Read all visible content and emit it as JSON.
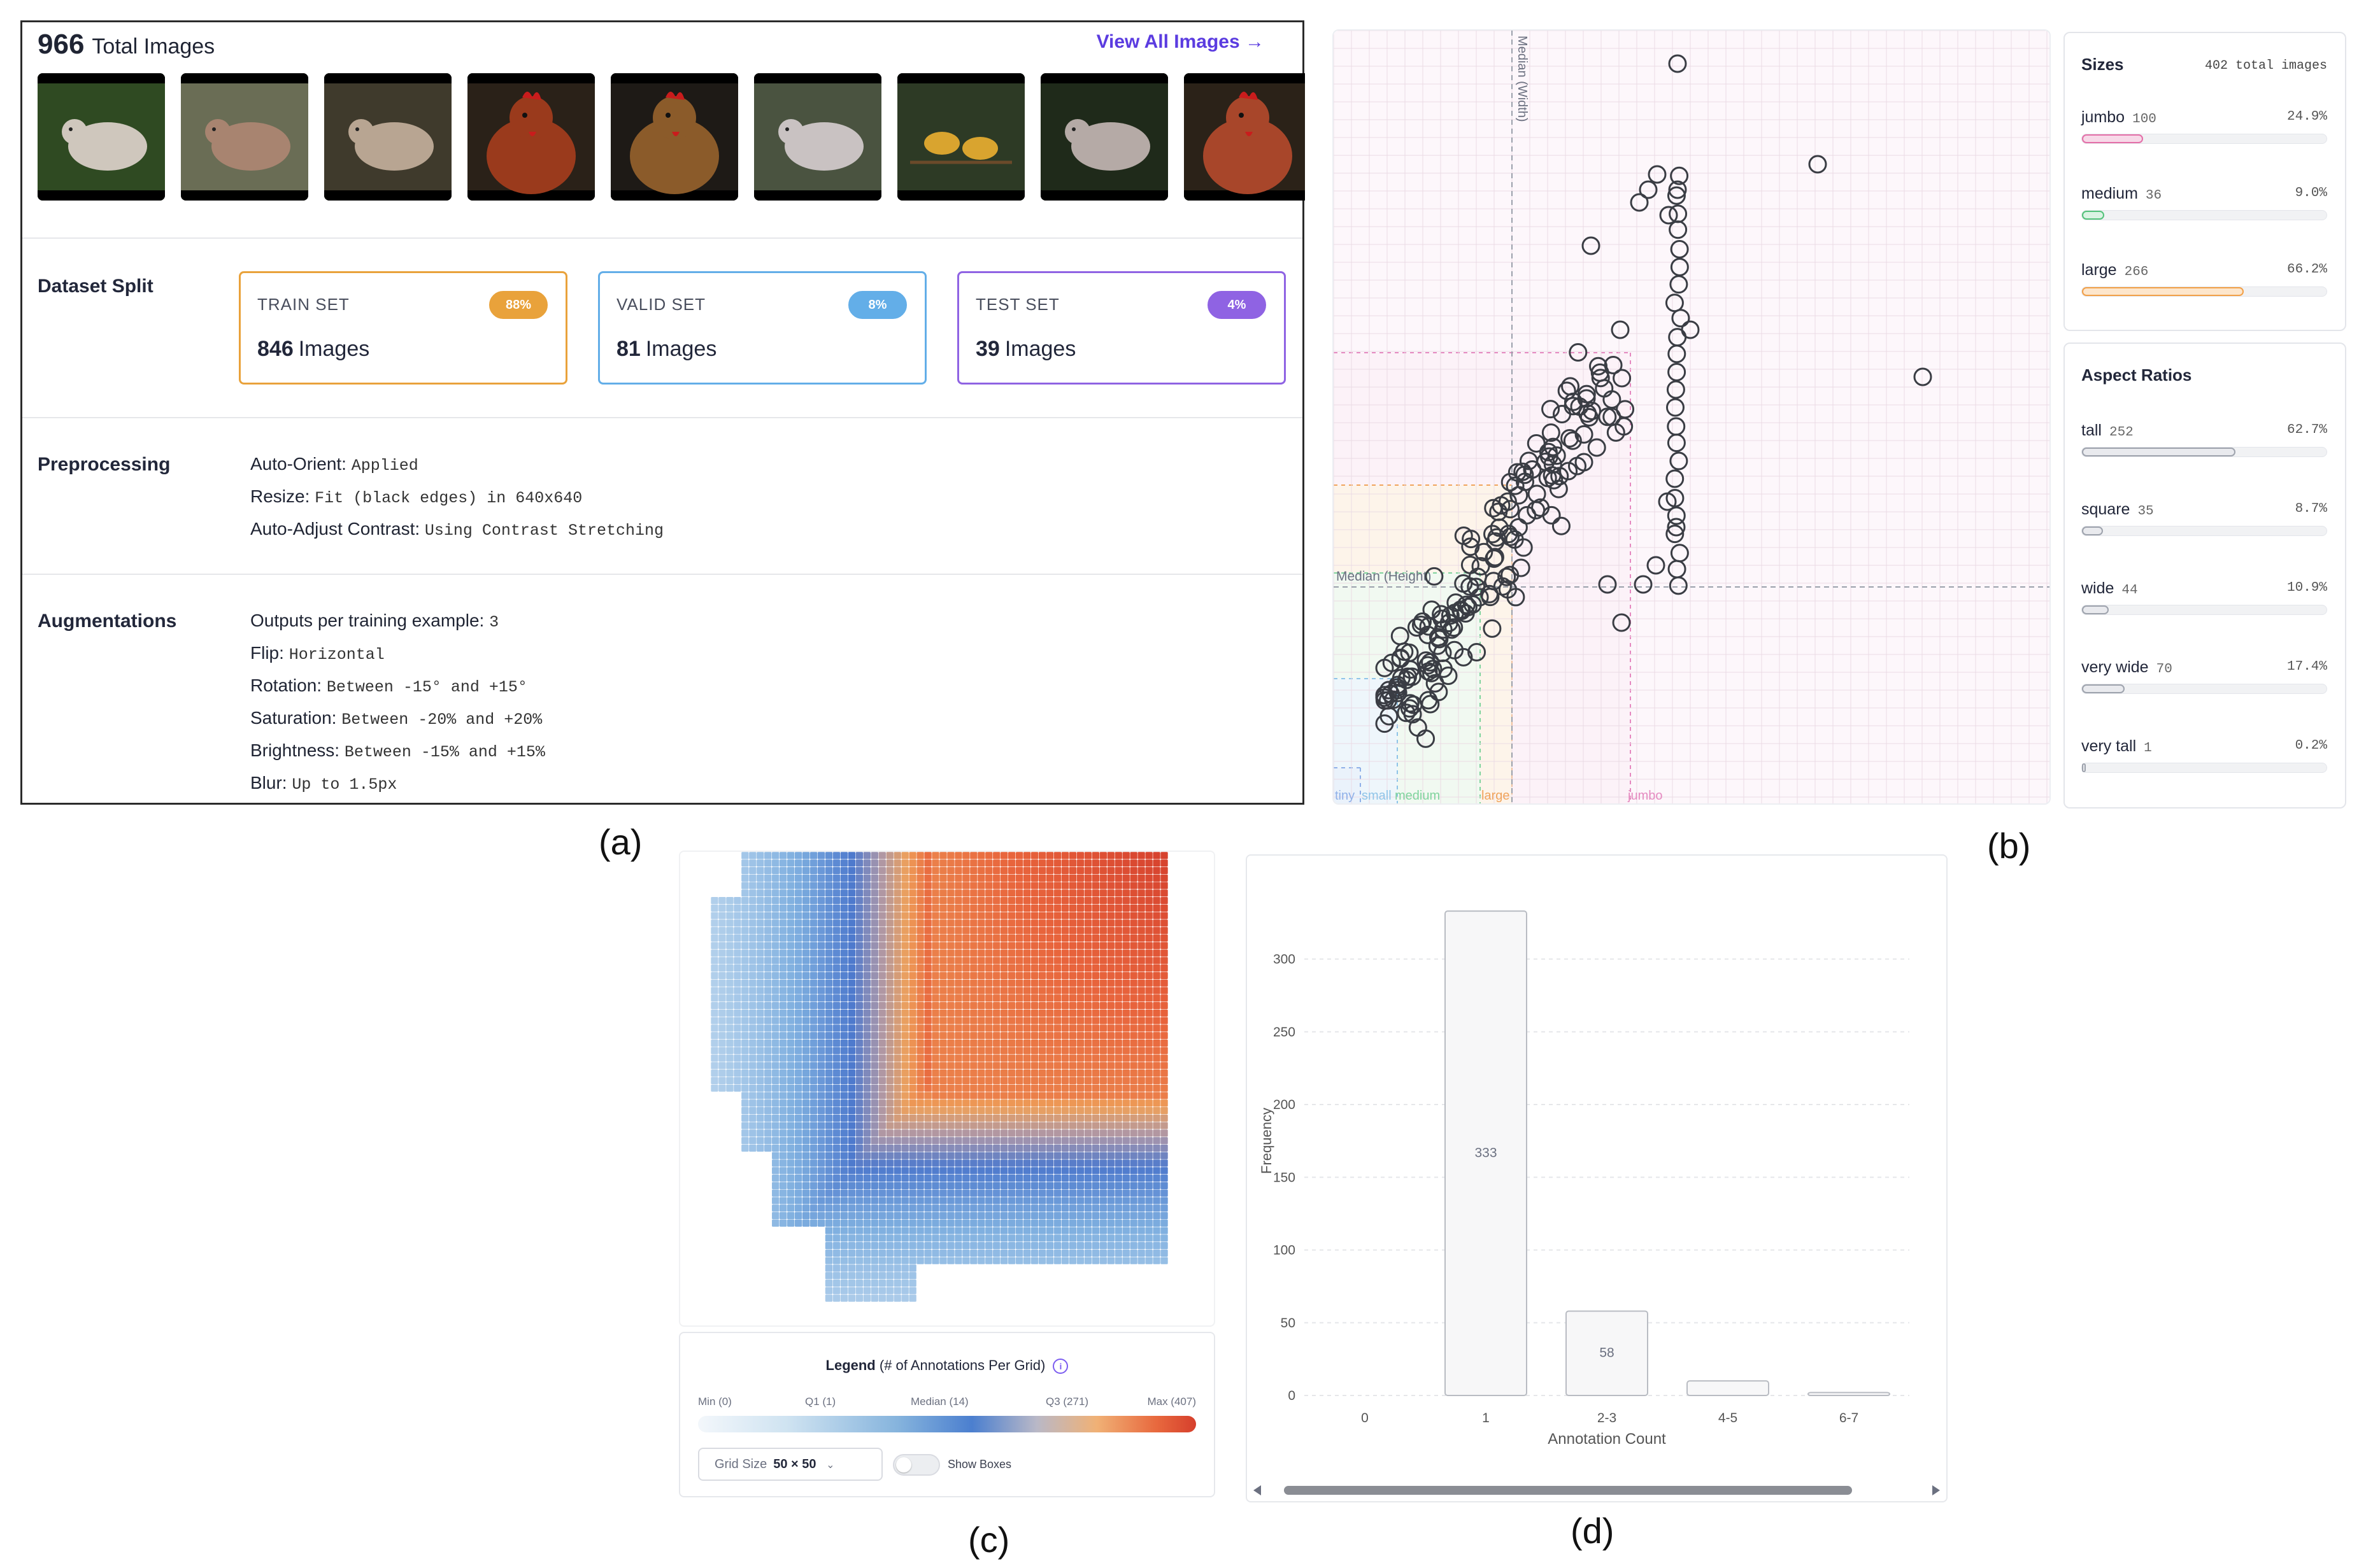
{
  "panel_a": {
    "total_count": "966",
    "total_label": "Total Images",
    "view_all": "View All Images →",
    "thumbnails": [
      {
        "subject": "dove",
        "bg": "#2f4a22",
        "body": "#cfc7bd"
      },
      {
        "subject": "dove",
        "bg": "#6a6d55",
        "body": "#a88470"
      },
      {
        "subject": "dove",
        "bg": "#3f3a2c",
        "body": "#b8a592"
      },
      {
        "subject": "chicken",
        "bg": "#2a2118",
        "body": "#9a3a1c"
      },
      {
        "subject": "chicken",
        "bg": "#1e1a16",
        "body": "#8b5b2a"
      },
      {
        "subject": "dove",
        "bg": "#4a5340",
        "body": "#c9c2c2"
      },
      {
        "subject": "finches",
        "bg": "#2d3a25",
        "body": "#d9a42f"
      },
      {
        "subject": "dove",
        "bg": "#1f2a1a",
        "body": "#b5aaa6"
      },
      {
        "subject": "chicken",
        "bg": "#2b2218",
        "body": "#a8462a"
      }
    ],
    "dataset_split": {
      "label": "Dataset Split",
      "sets": [
        {
          "title": "TRAIN SET",
          "count": "846",
          "unit": "Images",
          "badge": "88%",
          "color": "#e9a23b"
        },
        {
          "title": "VALID SET",
          "count": "81",
          "unit": "Images",
          "badge": "8%",
          "color": "#63aee8"
        },
        {
          "title": "TEST SET",
          "count": "39",
          "unit": "Images",
          "badge": "4%",
          "color": "#8f63e3"
        }
      ]
    },
    "preprocessing": {
      "label": "Preprocessing",
      "items": [
        {
          "k": "Auto-Orient:",
          "v": "Applied"
        },
        {
          "k": "Resize:",
          "v": "Fit (black edges) in 640x640"
        },
        {
          "k": "Auto-Adjust Contrast:",
          "v": "Using Contrast Stretching"
        }
      ]
    },
    "augmentations": {
      "label": "Augmentations",
      "items": [
        {
          "k": "Outputs per training example:",
          "v": "3"
        },
        {
          "k": "Flip:",
          "v": "Horizontal"
        },
        {
          "k": "Rotation:",
          "v": "Between -15° and +15°"
        },
        {
          "k": "Saturation:",
          "v": "Between -20% and +20%"
        },
        {
          "k": "Brightness:",
          "v": "Between -15% and +15%"
        },
        {
          "k": "Blur:",
          "v": "Up to 1.5px"
        }
      ]
    }
  },
  "panel_b": {
    "median_width_label": "Median (Width)",
    "median_height_label": "Median (Height)",
    "zone_labels": [
      "tiny",
      "small",
      "medium",
      "large",
      "jumbo"
    ],
    "sizes": {
      "title": "Sizes",
      "total": "402 total images",
      "rows": [
        {
          "name": "jumbo",
          "count": "100",
          "pct": "24.9%",
          "fraction": 0.249,
          "color": "#e46fa8",
          "fill": "#f7d9e8"
        },
        {
          "name": "medium",
          "count": "36",
          "pct": "9.0%",
          "fraction": 0.09,
          "color": "#53c27a",
          "fill": "#dbf3e3"
        },
        {
          "name": "large",
          "count": "266",
          "pct": "66.2%",
          "fraction": 0.662,
          "color": "#f2a048",
          "fill": "#fde6cc"
        }
      ]
    },
    "aspect_ratios": {
      "title": "Aspect Ratios",
      "rows": [
        {
          "name": "tall",
          "count": "252",
          "pct": "62.7%",
          "fraction": 0.627,
          "color": "#9ea3ad",
          "fill": "#e9eaee"
        },
        {
          "name": "square",
          "count": "35",
          "pct": "8.7%",
          "fraction": 0.087,
          "color": "#9ea3ad",
          "fill": "#e9eaee"
        },
        {
          "name": "wide",
          "count": "44",
          "pct": "10.9%",
          "fraction": 0.109,
          "color": "#9ea3ad",
          "fill": "#e9eaee"
        },
        {
          "name": "very wide",
          "count": "70",
          "pct": "17.4%",
          "fraction": 0.174,
          "color": "#9ea3ad",
          "fill": "#e9eaee"
        },
        {
          "name": "very tall",
          "count": "1",
          "pct": "0.2%",
          "fraction": 0.002,
          "color": "#9ea3ad",
          "fill": "#e9eaee"
        }
      ]
    }
  },
  "panel_c": {
    "legend_title": "Legend",
    "legend_subtitle": "(# of Annotations Per Grid)",
    "ticks": [
      "Min (0)",
      "Q1 (1)",
      "Median (14)",
      "Q3 (271)",
      "Max (407)"
    ],
    "grid_size_label": "Grid Size",
    "grid_size_value": "50 × 50",
    "show_boxes": "Show Boxes"
  },
  "chart_data": {
    "type": "bar",
    "categories": [
      "0",
      "1",
      "2-3",
      "4-5",
      "6-7"
    ],
    "values": [
      0,
      333,
      58,
      10,
      2
    ],
    "value_labels": [
      "",
      "333",
      "58",
      "",
      ""
    ],
    "xlabel": "Annotation Count",
    "ylabel": "Frequency",
    "ylim": [
      0,
      330
    ],
    "yticks": [
      0,
      50,
      100,
      150,
      200,
      250,
      300
    ],
    "grid": true
  },
  "captions": {
    "a": "(a)",
    "b": "(b)",
    "c": "(c)",
    "d": "(d)"
  }
}
